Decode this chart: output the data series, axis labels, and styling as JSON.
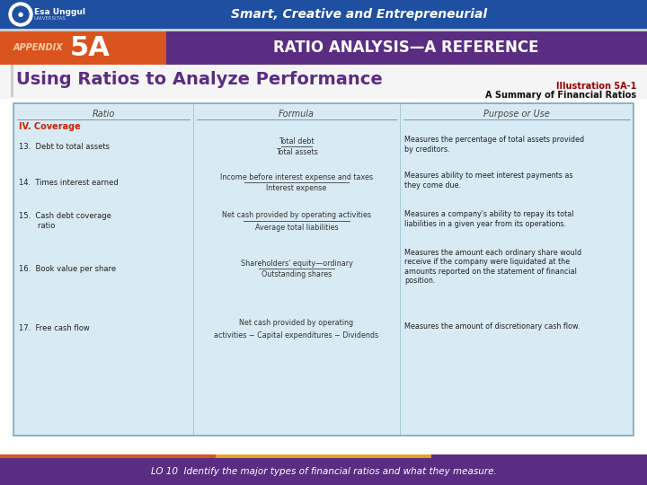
{
  "header_bg_color": "#1e4fa0",
  "header_text": "Smart, Creative and Entrepreneurial",
  "header_text_color": "#ffffff",
  "appendix_bg": "#d9541e",
  "appendix_text_small": "APPENDIX",
  "appendix_text_large": "5A",
  "appendix_text_color": "#ffffff",
  "subtitle_bg": "#5a2d82",
  "subtitle_text": "RATIO ANALYSIS—A REFERENCE",
  "subtitle_text_color": "#ffffff",
  "main_title": "Using Ratios to Analyze Performance",
  "main_title_color": "#5a2d82",
  "illus_label": "Illustration 5A-1",
  "illus_label_color": "#990000",
  "illus_subtitle": "A Summary of Financial Ratios",
  "illus_subtitle_color": "#111111",
  "table_bg": "#d8eaf4",
  "table_border": "#7aaabb",
  "col_headers": [
    "Ratio",
    "Formula",
    "Purpose or Use"
  ],
  "section_label": "IV. Coverage",
  "section_color": "#cc2200",
  "rows": [
    {
      "ratio": "13.  Debt to total assets",
      "formula_top": "Total debt",
      "formula_bot": "Total assets",
      "has_line": true,
      "purpose": "Measures the percentage of total assets provided\nby creditors."
    },
    {
      "ratio": "14.  Times interest earned",
      "formula_top": "Income before interest expense and taxes",
      "formula_bot": "Interest expense",
      "has_line": true,
      "purpose": "Measures ability to meet interest payments as\nthey come due."
    },
    {
      "ratio": "15.  Cash debt coverage\n        ratio",
      "formula_top": "Net cash provided by operating activities",
      "formula_bot": "Average total liabilities",
      "has_line": true,
      "purpose": "Measures a company's ability to repay its total\nliabilities in a given year from its operations."
    },
    {
      "ratio": "16.  Book value per share",
      "formula_top": "Shareholders' equity—ordinary",
      "formula_bot": "Outstanding shares",
      "has_line": true,
      "purpose": "Measures the amount each ordinary share would\nreceive if the company were liquidated at the\namounts reported on the statement of financial\nposition."
    },
    {
      "ratio": "17.  Free cash flow",
      "formula_top": "Net cash provided by operating",
      "formula_bot": "activities − Capital expenditures − Dividends",
      "has_line": false,
      "purpose": "Measures the amount of discretionary cash flow."
    }
  ],
  "footer_bg": "#5a2d82",
  "footer_text": "LO 10  Identify the major types of financial ratios and what they measure.",
  "footer_text_color": "#ffffff",
  "bottom_bar_left_color": "#d9541e",
  "bottom_bar_mid_color": "#e8a020",
  "bottom_bar_right_color": "#5a2d82",
  "page_bg": "#e8e8e8"
}
